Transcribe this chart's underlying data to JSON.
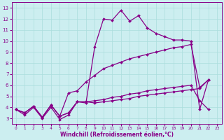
{
  "xlabel": "Windchill (Refroidissement éolien,°C)",
  "bg_color": "#cceef0",
  "line_color": "#880088",
  "grid_color": "#aadddd",
  "xlim": [
    -0.5,
    23.5
  ],
  "ylim": [
    2.5,
    13.5
  ],
  "xticks": [
    0,
    1,
    2,
    3,
    4,
    5,
    6,
    7,
    8,
    9,
    10,
    11,
    12,
    13,
    14,
    15,
    16,
    17,
    18,
    19,
    20,
    21,
    22,
    23
  ],
  "yticks": [
    3,
    4,
    5,
    6,
    7,
    8,
    9,
    10,
    11,
    12,
    13
  ],
  "series": [
    {
      "x": [
        0,
        1,
        2,
        3,
        4,
        5,
        6,
        7,
        8,
        9,
        10,
        11,
        12,
        13,
        14,
        15,
        16,
        17,
        18,
        19,
        20,
        21,
        22
      ],
      "y": [
        3.8,
        3.3,
        4.0,
        3.0,
        4.0,
        2.9,
        3.3,
        4.5,
        4.4,
        9.5,
        12.0,
        11.9,
        12.8,
        11.8,
        12.3,
        11.2,
        10.7,
        10.4,
        10.1,
        10.1,
        10.0,
        3.8,
        6.5
      ]
    },
    {
      "x": [
        0,
        1,
        2,
        3,
        4,
        5,
        6,
        7,
        8,
        9,
        10,
        11,
        12,
        13,
        14,
        15,
        16,
        17,
        18,
        19,
        20,
        21,
        22
      ],
      "y": [
        3.8,
        3.5,
        4.1,
        3.1,
        4.2,
        3.2,
        5.3,
        5.5,
        6.3,
        6.9,
        7.5,
        7.8,
        8.1,
        8.4,
        8.6,
        8.8,
        9.0,
        9.2,
        9.4,
        9.5,
        9.7,
        5.8,
        6.5
      ]
    },
    {
      "x": [
        0,
        1,
        2,
        3,
        4,
        5,
        6,
        7,
        8,
        9,
        10,
        11,
        12,
        13,
        14,
        15,
        16,
        17,
        18,
        19,
        20,
        21,
        22
      ],
      "y": [
        3.8,
        3.5,
        4.1,
        3.1,
        4.2,
        3.2,
        3.5,
        4.5,
        4.5,
        4.6,
        4.7,
        4.9,
        5.0,
        5.2,
        5.3,
        5.5,
        5.6,
        5.7,
        5.8,
        5.9,
        6.0,
        4.6,
        3.8
      ]
    },
    {
      "x": [
        0,
        1,
        2,
        3,
        4,
        5,
        6,
        7,
        8,
        9,
        10,
        11,
        12,
        13,
        14,
        15,
        16,
        17,
        18,
        19,
        20,
        21,
        22
      ],
      "y": [
        3.8,
        3.5,
        4.1,
        3.1,
        4.2,
        3.2,
        3.5,
        4.5,
        4.5,
        4.4,
        4.5,
        4.6,
        4.7,
        4.8,
        5.0,
        5.1,
        5.2,
        5.3,
        5.4,
        5.5,
        5.6,
        5.7,
        6.5
      ]
    }
  ],
  "markersize": 2.0,
  "linewidth": 0.9
}
